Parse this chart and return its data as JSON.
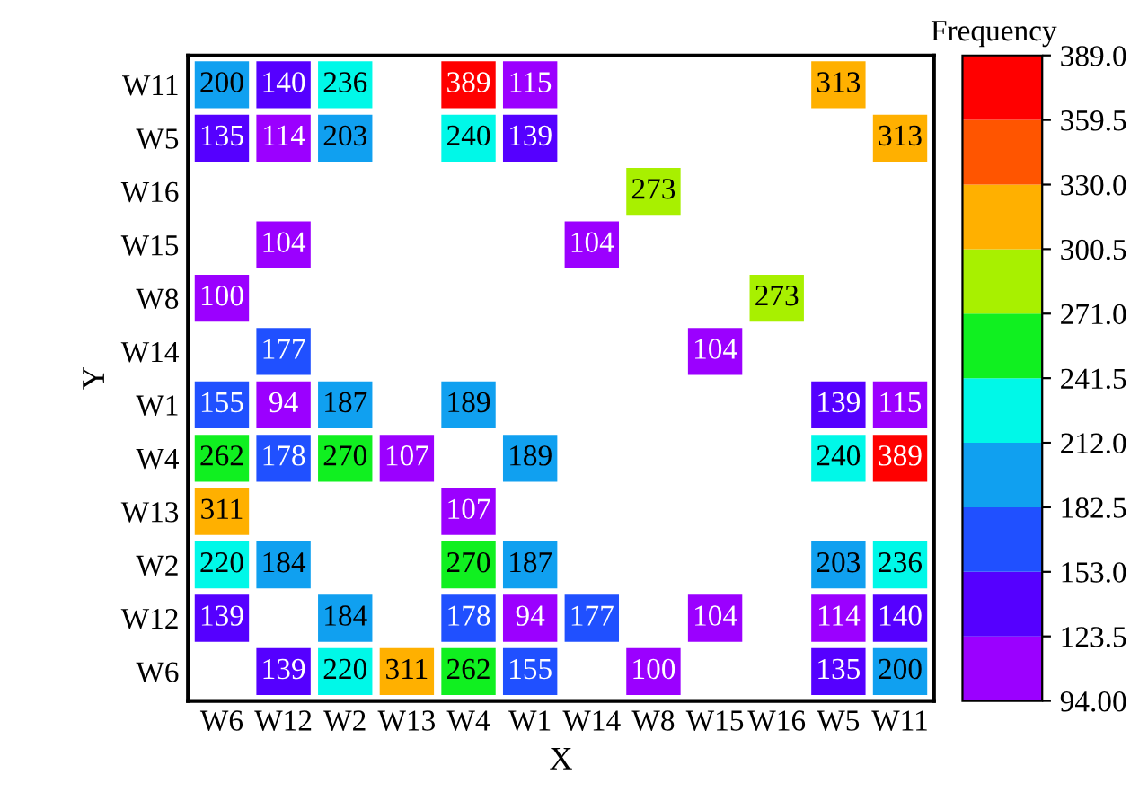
{
  "chart_data": {
    "type": "heatmap",
    "xlabel": "X",
    "ylabel": "Y",
    "clabel": "Frequency",
    "categories": [
      "W6",
      "W12",
      "W2",
      "W13",
      "W4",
      "W1",
      "W14",
      "W8",
      "W15",
      "W16",
      "W5",
      "W11"
    ],
    "y_categories": [
      "W11",
      "W5",
      "W16",
      "W15",
      "W8",
      "W14",
      "W1",
      "W4",
      "W13",
      "W2",
      "W12",
      "W6"
    ],
    "cells": [
      [
        200,
        140,
        236,
        null,
        389,
        115,
        null,
        null,
        null,
        null,
        313,
        null
      ],
      [
        135,
        114,
        203,
        null,
        240,
        139,
        null,
        null,
        null,
        null,
        null,
        313
      ],
      [
        null,
        null,
        null,
        null,
        null,
        null,
        null,
        273,
        null,
        null,
        null,
        null
      ],
      [
        null,
        104,
        null,
        null,
        null,
        null,
        104,
        null,
        null,
        null,
        null,
        null
      ],
      [
        100,
        null,
        null,
        null,
        null,
        null,
        null,
        null,
        null,
        273,
        null,
        null
      ],
      [
        null,
        177,
        null,
        null,
        null,
        null,
        null,
        null,
        104,
        null,
        null,
        null
      ],
      [
        155,
        94,
        187,
        null,
        189,
        null,
        null,
        null,
        null,
        null,
        139,
        115
      ],
      [
        262,
        178,
        270,
        107,
        null,
        189,
        null,
        null,
        null,
        null,
        240,
        389
      ],
      [
        311,
        null,
        null,
        null,
        107,
        null,
        null,
        null,
        null,
        null,
        null,
        null
      ],
      [
        220,
        184,
        null,
        null,
        270,
        187,
        null,
        null,
        null,
        null,
        203,
        236
      ],
      [
        139,
        null,
        184,
        null,
        178,
        94,
        177,
        null,
        104,
        null,
        114,
        140
      ],
      [
        null,
        139,
        220,
        311,
        262,
        155,
        null,
        100,
        null,
        null,
        135,
        200
      ]
    ],
    "data_labels": true,
    "clim": [
      94,
      389
    ],
    "cticks": [
      {
        "value": 94,
        "label": "94.00"
      },
      {
        "value": 123.5,
        "label": "123.5"
      },
      {
        "value": 153,
        "label": "153.0"
      },
      {
        "value": 182.5,
        "label": "182.5"
      },
      {
        "value": 212,
        "label": "212.0"
      },
      {
        "value": 241.5,
        "label": "241.5"
      },
      {
        "value": 271,
        "label": "271.0"
      },
      {
        "value": 300.5,
        "label": "300.5"
      },
      {
        "value": 330,
        "label": "330.0"
      },
      {
        "value": 359.5,
        "label": "359.5"
      },
      {
        "value": 389,
        "label": "389.0"
      }
    ]
  }
}
